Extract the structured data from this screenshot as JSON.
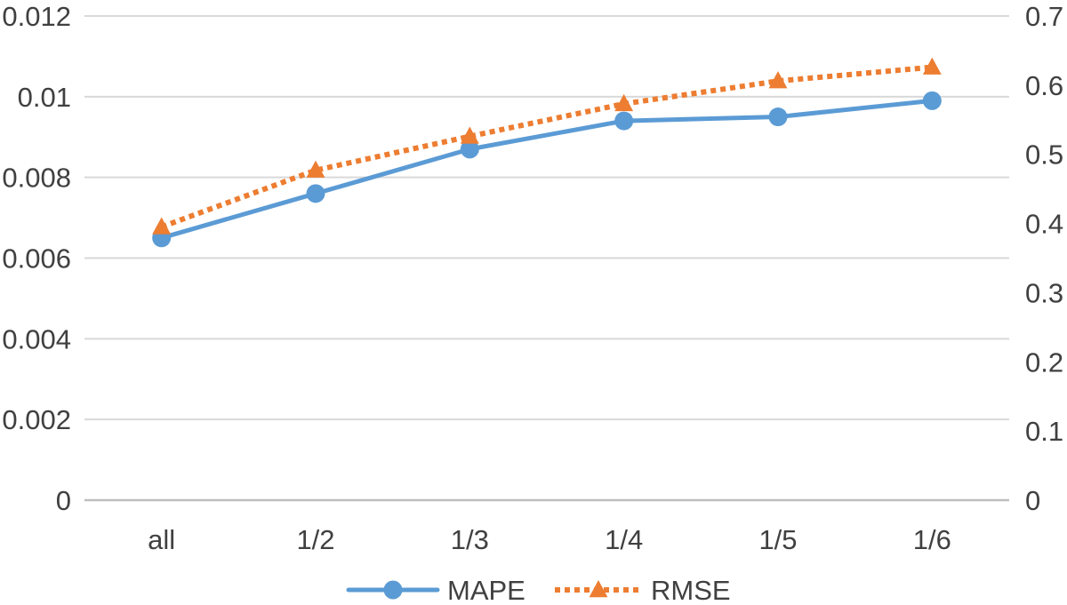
{
  "chart_data": {
    "type": "line",
    "title": "",
    "xlabel": "",
    "ylabel": "",
    "y2label": "",
    "categories": [
      "all",
      "1/2",
      "1/3",
      "1/4",
      "1/5",
      "1/6"
    ],
    "ylim": [
      0,
      0.012
    ],
    "y2lim": [
      0,
      0.7
    ],
    "yticks": [
      0,
      0.002,
      0.004,
      0.006,
      0.008,
      0.01,
      0.012
    ],
    "ytick_labels": [
      "0",
      "0.002",
      "0.004",
      "0.006",
      "0.008",
      "0.01",
      "0.012"
    ],
    "y2ticks": [
      0,
      0.1,
      0.2,
      0.3,
      0.4,
      0.5,
      0.6,
      0.7
    ],
    "y2tick_labels": [
      "0",
      "0.1",
      "0.2",
      "0.3",
      "0.4",
      "0.5",
      "0.6",
      "0.7"
    ],
    "grid": true,
    "legend_position": "bottom-center",
    "series": [
      {
        "name": "MAPE",
        "axis": "left",
        "values": [
          0.0065,
          0.0076,
          0.0087,
          0.0094,
          0.0095,
          0.0099
        ],
        "color": "#5B9BD5",
        "style": "solid",
        "marker": "circle"
      },
      {
        "name": "RMSE",
        "axis": "right",
        "values": [
          0.395,
          0.477,
          0.526,
          0.573,
          0.606,
          0.626
        ],
        "color": "#ED7D31",
        "style": "dotted",
        "marker": "triangle"
      }
    ]
  }
}
